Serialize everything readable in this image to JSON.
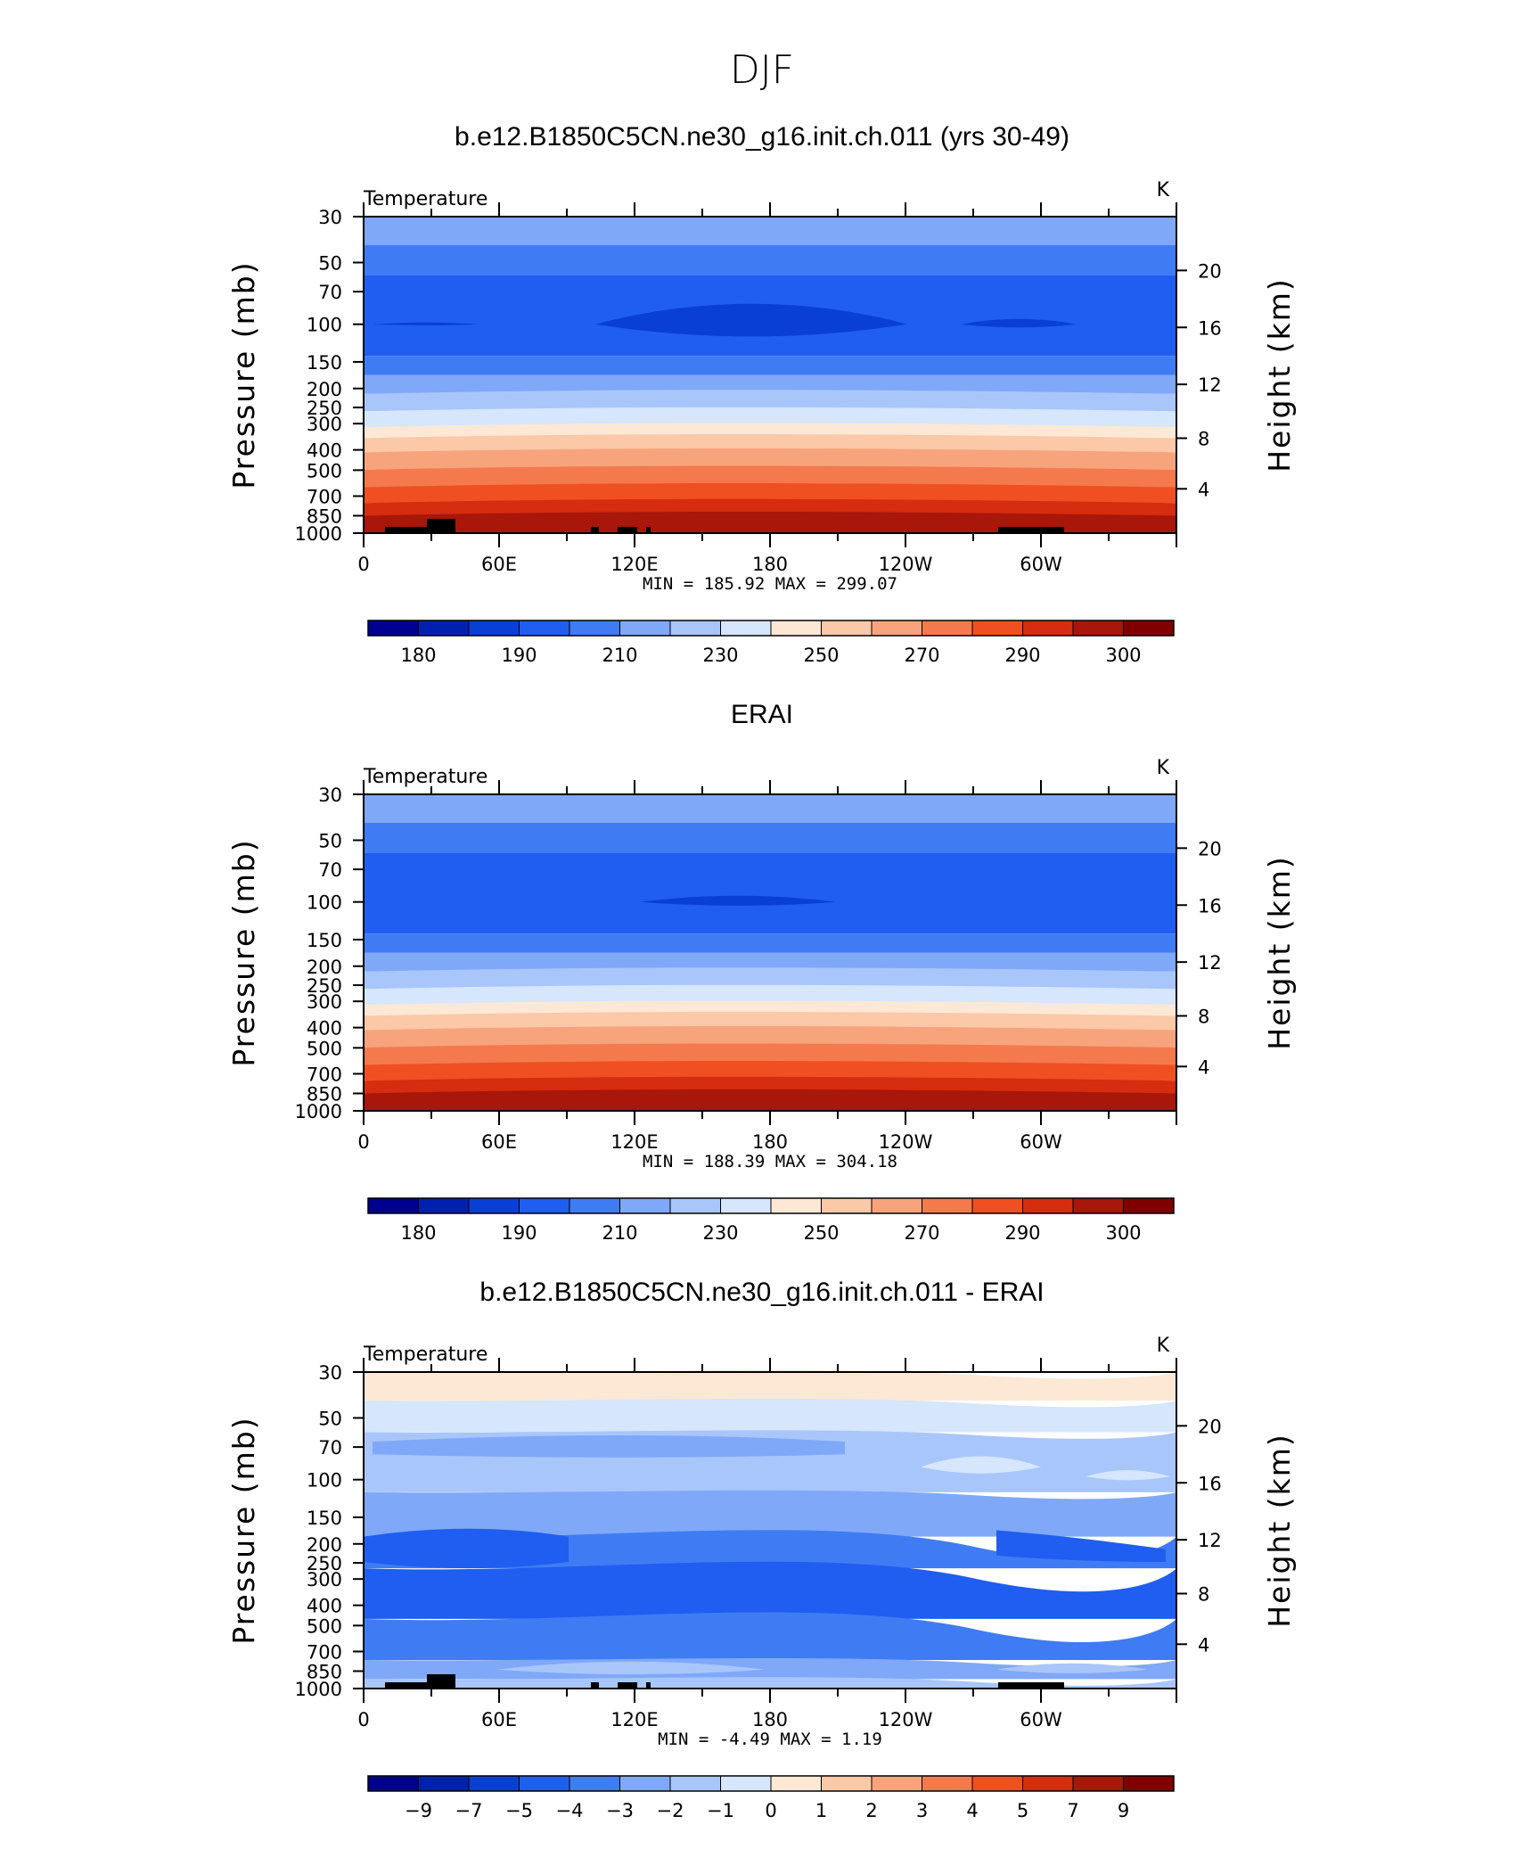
{
  "figure_title": "DJF",
  "colors": {
    "abs_levels": [
      "#000090",
      "#0021b0",
      "#0a3fd6",
      "#1f5ef0",
      "#3f7cf4",
      "#7fa8f8",
      "#a9c6fb",
      "#d5e6fd",
      "#fde8d6",
      "#fbc8a8",
      "#f7a47d",
      "#f47a4d",
      "#f04f22",
      "#d62c0f",
      "#a9160a",
      "#800000"
    ],
    "land": "#000000"
  },
  "chart_data": [
    {
      "type": "heatmap",
      "title": "b.e12.B1850C5CN.ne30_g16.init.ch.011 (yrs 30-49)",
      "variable": "Temperature",
      "units": "K",
      "ylabel": "Pressure  (mb)",
      "y2label": "Height  (km)",
      "x_ticks": [
        "0",
        "60E",
        "120E",
        "180",
        "120W",
        "60W"
      ],
      "y_ticks": [
        "30",
        "50",
        "70",
        "100",
        "150",
        "200",
        "250",
        "300",
        "400",
        "500",
        "700",
        "850",
        "1000"
      ],
      "y2_ticks": [
        "20",
        "16",
        "12",
        "8",
        "4"
      ],
      "stats": "MIN =  185.92   MAX =  299.07",
      "colorbar_labels": [
        "180",
        "190",
        "210",
        "230",
        "250",
        "270",
        "290",
        "300"
      ],
      "min": 185.92,
      "max": 299.07
    },
    {
      "type": "heatmap",
      "title": "ERAI",
      "variable": "Temperature",
      "units": "K",
      "ylabel": "Pressure  (mb)",
      "y2label": "Height  (km)",
      "x_ticks": [
        "0",
        "60E",
        "120E",
        "180",
        "120W",
        "60W"
      ],
      "y_ticks": [
        "30",
        "50",
        "70",
        "100",
        "150",
        "200",
        "250",
        "300",
        "400",
        "500",
        "700",
        "850",
        "1000"
      ],
      "y2_ticks": [
        "20",
        "16",
        "12",
        "8",
        "4"
      ],
      "stats": "MIN =  188.39   MAX =  304.18",
      "colorbar_labels": [
        "180",
        "190",
        "210",
        "230",
        "250",
        "270",
        "290",
        "300"
      ],
      "min": 188.39,
      "max": 304.18
    },
    {
      "type": "heatmap",
      "title": "b.e12.B1850C5CN.ne30_g16.init.ch.011 - ERAI",
      "variable": "Temperature",
      "units": "K",
      "ylabel": "Pressure  (mb)",
      "y2label": "Height  (km)",
      "x_ticks": [
        "0",
        "60E",
        "120E",
        "180",
        "120W",
        "60W"
      ],
      "y_ticks": [
        "30",
        "50",
        "70",
        "100",
        "150",
        "200",
        "250",
        "300",
        "400",
        "500",
        "700",
        "850",
        "1000"
      ],
      "y2_ticks": [
        "20",
        "16",
        "12",
        "8",
        "4"
      ],
      "stats": "MIN =    -4.49   MAX =     1.19",
      "colorbar_labels": [
        "−9",
        "−7",
        "−5",
        "−4",
        "−3",
        "−2",
        "−1",
        "0",
        "1",
        "2",
        "3",
        "4",
        "5",
        "7",
        "9"
      ],
      "min": -4.49,
      "max": 1.19
    }
  ]
}
